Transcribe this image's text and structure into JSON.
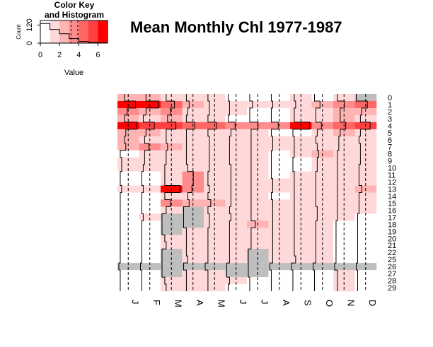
{
  "title": "Mean Monthly Chl 1977-1987",
  "color_key": {
    "title_line1": "Color Key",
    "title_line2": "and Histogram",
    "xlabel": "Value",
    "ylabel": "Count",
    "x_ticks": [
      "0",
      "2",
      "4",
      "6"
    ],
    "y_ticks": [
      "0",
      "120"
    ],
    "xlim": [
      0,
      7
    ],
    "breaks": [
      0,
      1,
      2,
      3,
      4,
      5,
      6,
      7
    ],
    "colors": [
      "#FFFFFF",
      "#FFD9D9",
      "#FFB3B3",
      "#FF8C8C",
      "#FF6666",
      "#FF4040",
      "#FF0000"
    ],
    "hist_counts": [
      130,
      90,
      62,
      30,
      12,
      5,
      2
    ],
    "colors_note_na": "#BEBEBE"
  },
  "chart_data": {
    "type": "heatmap",
    "title": "Mean Monthly Chl 1977-1987",
    "columns": [
      "J",
      "F",
      "M",
      "A",
      "M",
      "J",
      "J",
      "A",
      "S",
      "O",
      "N",
      "D"
    ],
    "rows": [
      "0",
      "1",
      "2",
      "3",
      "4",
      "5",
      "6",
      "7",
      "8",
      "9",
      "10",
      "11",
      "12",
      "13",
      "14",
      "15",
      "16",
      "17",
      "18",
      "19",
      "20",
      "21",
      "22",
      "25",
      "26",
      "27",
      "28",
      "29"
    ],
    "color_scale": [
      "#FFFFFF",
      "#FFD9D9",
      "#FFB3B3",
      "#FF8C8C",
      "#FF6666",
      "#FF4040",
      "#FF0000"
    ],
    "na_color": "#BEBEBE",
    "value_range": [
      0,
      7
    ],
    "values": [
      [
        2.0,
        2.0,
        1.5,
        1.0,
        1.0,
        0.5,
        0.5,
        0.5,
        1.0,
        0.5,
        1.0,
        null
      ],
      [
        6.0,
        6.5,
        4.5,
        2.0,
        1.5,
        1.0,
        1.5,
        1.0,
        1.5,
        2.5,
        3.5,
        4.0
      ],
      [
        3.0,
        2.0,
        3.0,
        1.5,
        1.5,
        1.0,
        0.5,
        0.5,
        1.0,
        1.0,
        2.0,
        2.0
      ],
      [
        2.0,
        1.0,
        2.0,
        1.0,
        1.0,
        0.5,
        0.5,
        0.5,
        1.0,
        1.0,
        2.0,
        1.5
      ],
      [
        6.5,
        5.0,
        5.0,
        4.0,
        4.0,
        3.0,
        3.5,
        3.0,
        6.5,
        3.0,
        4.0,
        5.0
      ],
      [
        2.5,
        2.0,
        1.5,
        1.0,
        1.0,
        1.5,
        1.0,
        0.5,
        0.5,
        1.5,
        2.0,
        1.5
      ],
      [
        2.0,
        1.5,
        1.5,
        1.0,
        1.5,
        1.0,
        1.0,
        1.0,
        1.0,
        1.0,
        1.5,
        1.0
      ],
      [
        2.5,
        3.0,
        2.0,
        1.0,
        1.5,
        1.0,
        1.0,
        1.0,
        1.0,
        1.5,
        1.5,
        1.5
      ],
      [
        0.5,
        1.5,
        1.5,
        1.0,
        1.5,
        1.0,
        1.0,
        0.5,
        1.0,
        2.0,
        1.0,
        1.5
      ],
      [
        1.0,
        1.5,
        1.5,
        1.0,
        1.5,
        1.0,
        1.0,
        0.5,
        0.5,
        1.5,
        1.0,
        1.5
      ],
      [
        1.0,
        1.0,
        1.0,
        1.5,
        1.5,
        1.5,
        1.0,
        0.5,
        0.5,
        1.5,
        1.0,
        1.0
      ],
      [
        0.5,
        0.5,
        1.0,
        3.5,
        1.0,
        1.5,
        1.0,
        0.5,
        1.0,
        1.0,
        1.0,
        1.0
      ],
      [
        0.5,
        0.5,
        1.0,
        3.5,
        1.0,
        1.5,
        1.0,
        1.0,
        1.0,
        1.0,
        1.0,
        1.0
      ],
      [
        1.0,
        1.0,
        6.5,
        3.0,
        1.5,
        1.5,
        1.0,
        1.0,
        1.0,
        1.0,
        1.0,
        2.0
      ],
      [
        0.5,
        0.5,
        1.0,
        1.5,
        1.0,
        1.5,
        1.0,
        0.5,
        1.0,
        1.0,
        1.0,
        1.0
      ],
      [
        0.5,
        0.5,
        3.0,
        2.0,
        2.0,
        1.5,
        1.0,
        1.0,
        1.0,
        1.0,
        1.0,
        1.0
      ],
      [
        0.5,
        0.5,
        1.5,
        null,
        1.0,
        1.0,
        1.0,
        1.0,
        1.0,
        1.5,
        1.0,
        1.0
      ],
      [
        0.5,
        1.0,
        null,
        null,
        1.5,
        1.5,
        1.0,
        1.0,
        1.0,
        1.5,
        1.0,
        0.5
      ],
      [
        0.5,
        0.5,
        null,
        null,
        1.5,
        1.0,
        2.5,
        1.0,
        1.0,
        1.0,
        0.5,
        0.5
      ],
      [
        0.5,
        0.5,
        null,
        1.0,
        1.0,
        1.0,
        1.0,
        1.0,
        1.0,
        1.0,
        0.5,
        0.5
      ],
      [
        0.5,
        0.5,
        1.0,
        1.0,
        1.0,
        1.0,
        1.0,
        1.0,
        1.0,
        1.0,
        0.5,
        0.5
      ],
      [
        0.5,
        0.5,
        1.5,
        1.0,
        1.0,
        1.0,
        1.0,
        1.0,
        1.0,
        1.0,
        0.5,
        0.5
      ],
      [
        0.5,
        0.5,
        null,
        1.0,
        1.0,
        1.0,
        null,
        1.0,
        1.0,
        1.0,
        0.5,
        0.5
      ],
      [
        0.5,
        0.5,
        null,
        1.5,
        1.0,
        1.0,
        null,
        1.0,
        1.5,
        1.0,
        0.5,
        0.5
      ],
      [
        null,
        null,
        null,
        null,
        null,
        null,
        null,
        null,
        null,
        null,
        null,
        null
      ],
      [
        0.5,
        0.5,
        null,
        1.0,
        1.0,
        null,
        null,
        0.5,
        0.5,
        0.5,
        1.0,
        0.5
      ],
      [
        0.5,
        0.5,
        1.0,
        1.0,
        1.0,
        1.0,
        0.5,
        0.5,
        0.5,
        0.5,
        1.0,
        0.5
      ],
      [
        0.5,
        0.5,
        1.5,
        1.0,
        1.0,
        0.5,
        0.5,
        0.5,
        0.5,
        0.5,
        1.0,
        0.5
      ]
    ]
  }
}
